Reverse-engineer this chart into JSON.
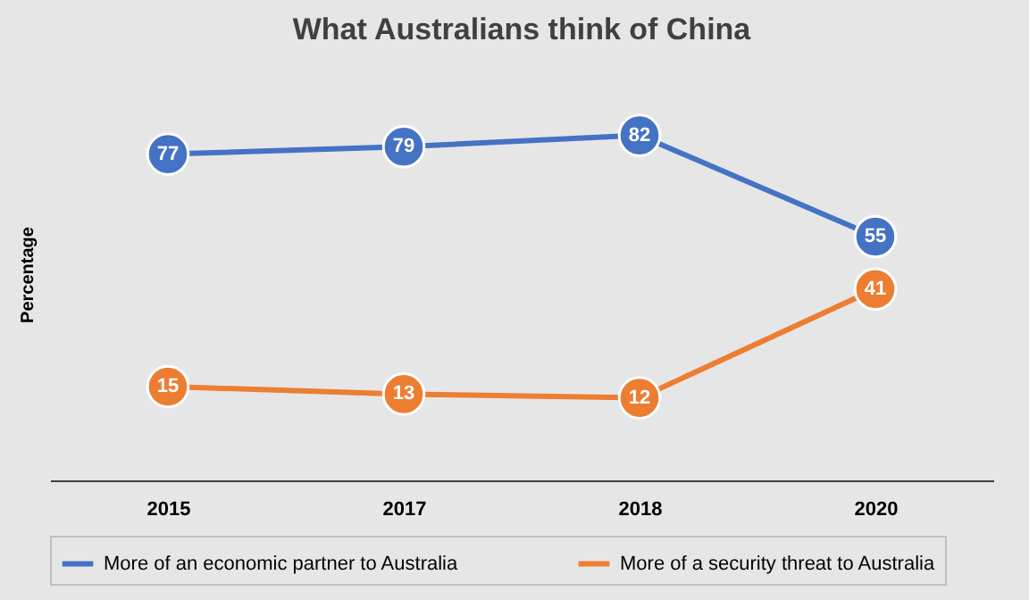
{
  "chart_data": {
    "type": "line",
    "title": "What Australians  think of China",
    "ylabel": "Percentage",
    "categories": [
      "2015",
      "2017",
      "2018",
      "2020"
    ],
    "series": [
      {
        "name": "More of an economic partner to Australia",
        "color": "#4472c4",
        "values": [
          77,
          79,
          82,
          55
        ]
      },
      {
        "name": "More of a security threat to Australia",
        "color": "#ed7d31",
        "values": [
          15,
          13,
          12,
          41
        ]
      }
    ],
    "tick_labels": "x",
    "data_labels": true,
    "marker": "circle",
    "line_style": "solid",
    "grid": false,
    "legend": "bottom"
  }
}
